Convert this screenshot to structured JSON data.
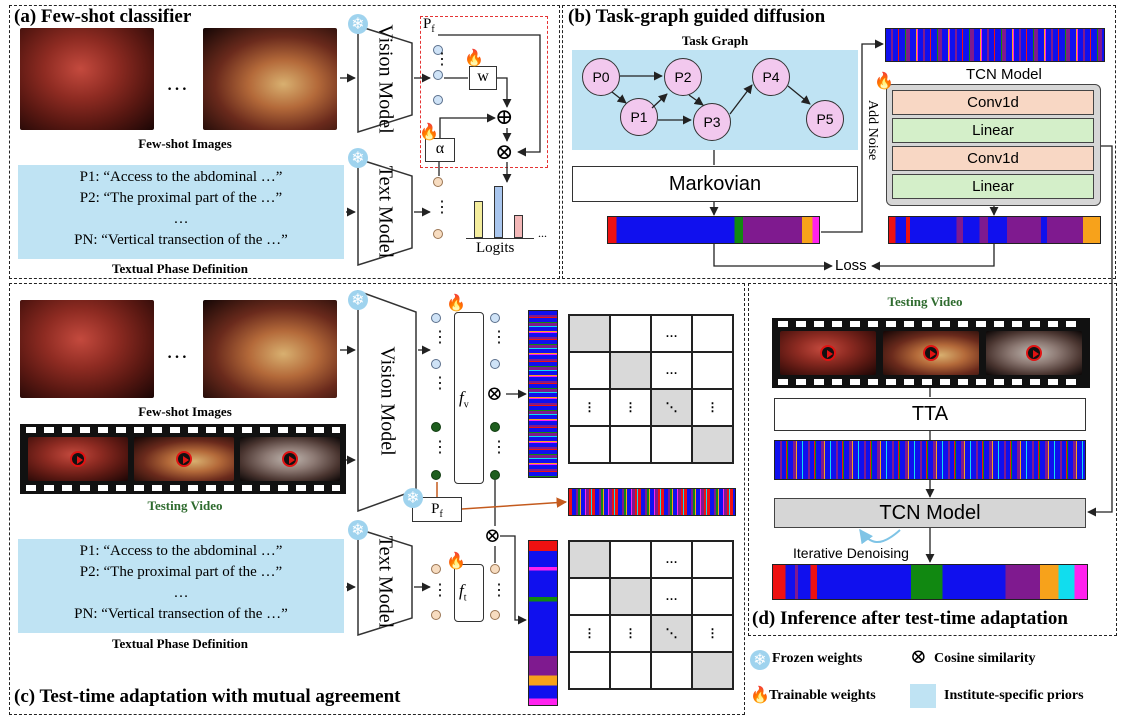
{
  "panel_a": {
    "title": "(a) Few-shot classifier",
    "images_label": "Few-shot Images",
    "ellipsis": "…",
    "vision_model": "Vision Model",
    "text_model": "Text Model",
    "pf": "Pf",
    "w": "w",
    "alpha": "α",
    "oplus": "⊕",
    "otimes": "⊗",
    "logits": "Logits",
    "dots": "...",
    "defs": [
      "P1: “Access to the abdominal …”",
      "P2: “The proximal part of the …”",
      "…",
      "PN: “Vertical transection of the …”"
    ],
    "defs_label": "Textual Phase Definition"
  },
  "panel_b": {
    "title": "(b) Task-graph guided diffusion",
    "task_graph": "Task Graph",
    "nodes": [
      "P0",
      "P1",
      "P2",
      "P3",
      "P4",
      "P5"
    ],
    "markovian": "Markovian",
    "add_noise": "Add Noise",
    "tcn_model": "TCN Model",
    "layers": [
      "Conv1d",
      "Linear",
      "Conv1d",
      "Linear"
    ],
    "loss": "Loss"
  },
  "panel_c": {
    "title": "(c) Test-time adaptation with mutual agreement",
    "images_label": "Few-shot Images",
    "ellipsis": "…",
    "testing_video": "Testing Video",
    "vision_model": "Vision Model",
    "text_model": "Text Model",
    "fv": "fv",
    "ft": "ft",
    "pf": "Pf",
    "otimes": "⊗",
    "defs": [
      "P1: “Access to the abdominal …”",
      "P2: “The proximal part of the …”",
      "…",
      "PN: “Vertical transection of the …”"
    ],
    "defs_label": "Textual Phase Definition",
    "matrix_cells": [
      "…",
      "⋮",
      "⋮",
      "⋱",
      "⋮"
    ]
  },
  "panel_d": {
    "title": "(d) Inference after test-time adaptation",
    "testing_video": "Testing Video",
    "tta": "TTA",
    "tcn_model": "TCN Model",
    "iterative": "Iterative Denoising"
  },
  "legend": {
    "frozen": "Frozen weights",
    "cosine": "Cosine similarity",
    "trainable": "Trainable weights",
    "priors": "Institute-specific priors"
  },
  "colors": {
    "prior_blue": "#bfe3f3",
    "graph_node": "#f2c8ee",
    "conv": "#f8d7c4",
    "linear": "#d4efc9",
    "phase_red": "#ee1111",
    "phase_blue": "#1010ee",
    "phase_green": "#118811",
    "phase_purple": "#7f1a8f",
    "phase_orange": "#f7a21b",
    "phase_magenta": "#ff22ee",
    "phase_cyan": "#11ddee",
    "arrow_orange": "#c45a1d",
    "testing_green": "#2e6b2e"
  }
}
